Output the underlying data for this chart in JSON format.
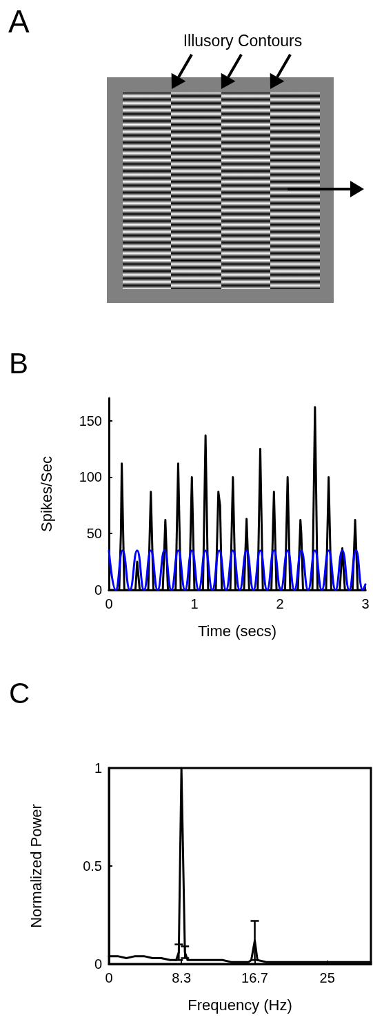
{
  "chart_data": [
    {
      "type": "other",
      "title": "A",
      "annotations": [
        "Illusory Contours"
      ]
    },
    {
      "type": "line",
      "title": "B",
      "xlabel": "Time (secs)",
      "ylabel": "Spikes/Sec",
      "xlim": [
        0,
        3
      ],
      "xticks": [
        0,
        1,
        2,
        3
      ],
      "ylim": [
        0,
        170
      ],
      "yticks": [
        0,
        50,
        100,
        150
      ],
      "marker": "none",
      "series": [
        {
          "color": "#000000",
          "x": [
            0,
            0.12,
            0.14,
            0.15,
            0.18,
            0.31,
            0.33,
            0.36,
            0.46,
            0.49,
            0.52,
            0.63,
            0.66,
            0.69,
            0.78,
            0.81,
            0.84,
            0.94,
            0.97,
            1.0,
            1.1,
            1.13,
            1.16,
            1.25,
            1.28,
            1.3,
            1.32,
            1.42,
            1.45,
            1.48,
            1.58,
            1.61,
            1.64,
            1.74,
            1.77,
            1.8,
            1.9,
            1.93,
            1.96,
            2.06,
            2.09,
            2.12,
            2.21,
            2.24,
            2.25,
            2.27,
            2.38,
            2.41,
            2.44,
            2.54,
            2.57,
            2.6,
            2.7,
            2.73,
            2.76,
            2.85,
            2.88,
            2.91,
            3
          ],
          "values": [
            0,
            0,
            50,
            112,
            0,
            0,
            25,
            0,
            0,
            87,
            0,
            0,
            62,
            0,
            0,
            112,
            0,
            0,
            100,
            0,
            0,
            137,
            0,
            0,
            87,
            75,
            0,
            0,
            100,
            0,
            0,
            63,
            0,
            0,
            125,
            0,
            0,
            87,
            0,
            0,
            100,
            0,
            0,
            62,
            50,
            0,
            0,
            162,
            0,
            0,
            100,
            0,
            0,
            37,
            0,
            0,
            62,
            0,
            0
          ]
        },
        {
          "color": "#0000ff",
          "x": [
            0,
            0.08,
            0.16,
            0.245,
            0.33,
            0.41,
            0.49,
            0.57,
            0.65,
            0.73,
            0.81,
            0.89,
            0.97,
            1.05,
            1.13,
            1.21,
            1.29,
            1.37,
            1.45,
            1.53,
            1.61,
            1.69,
            1.77,
            1.85,
            1.93,
            2.01,
            2.09,
            2.17,
            2.25,
            2.33,
            2.41,
            2.49,
            2.57,
            2.65,
            2.73,
            2.81,
            2.89,
            2.97,
            3
          ],
          "values": [
            35,
            0,
            35,
            0,
            35,
            0,
            35,
            0,
            35,
            0,
            35,
            0,
            35,
            0,
            35,
            0,
            35,
            0,
            35,
            0,
            35,
            0,
            35,
            0,
            35,
            0,
            35,
            0,
            35,
            0,
            35,
            0,
            35,
            0,
            35,
            0,
            35,
            0,
            5
          ]
        }
      ]
    },
    {
      "type": "line",
      "title": "C",
      "xlabel": "Frequency (Hz)",
      "ylabel": "Normalized Power",
      "xlim": [
        0,
        30
      ],
      "xticks": [
        0,
        8.3,
        16.7,
        25
      ],
      "ylim": [
        0,
        1
      ],
      "yticks": [
        0,
        0.5,
        1
      ],
      "marker": "none",
      "color": "#000000",
      "x": [
        0,
        1,
        2,
        3,
        4,
        5,
        6,
        7,
        7.7,
        8,
        8.3,
        8.7,
        9,
        10,
        11,
        12,
        13,
        14,
        15,
        16,
        16.3,
        16.7,
        17,
        18,
        19,
        20,
        21,
        22,
        23,
        24,
        25,
        26,
        27,
        28,
        29,
        30
      ],
      "values": [
        0.04,
        0.04,
        0.03,
        0.04,
        0.04,
        0.03,
        0.03,
        0.02,
        0.02,
        0.06,
        1,
        0.06,
        0.02,
        0.02,
        0.02,
        0.02,
        0.02,
        0.01,
        0.01,
        0.01,
        0.02,
        0.12,
        0.02,
        0.01,
        0.01,
        0.01,
        0.01,
        0.01,
        0.01,
        0.01,
        0.01,
        0.01,
        0.01,
        0.01,
        0.01,
        0.01
      ],
      "errors": [
        null,
        null,
        null,
        null,
        null,
        null,
        null,
        null,
        null,
        0.04,
        null,
        0.03,
        null,
        null,
        null,
        null,
        null,
        null,
        null,
        null,
        null,
        0.1,
        null,
        null,
        null,
        null,
        null,
        null,
        null,
        null,
        null,
        null,
        null,
        null,
        null,
        null
      ]
    }
  ]
}
